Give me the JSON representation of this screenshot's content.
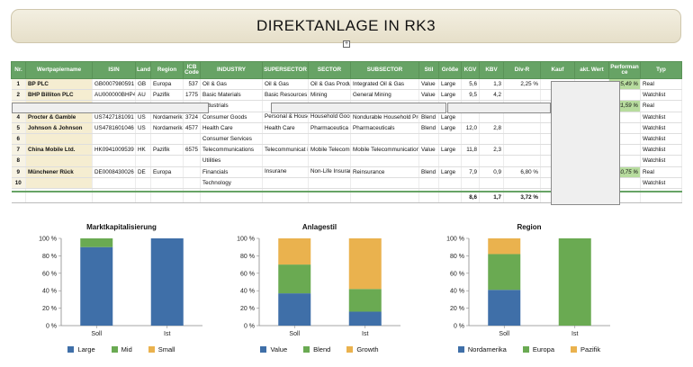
{
  "title": "DIREKTANLAGE IN RK3",
  "table": {
    "headers": [
      "Nr.",
      "Wertpapiername",
      "ISIN",
      "Land",
      "Region",
      "ICB Code",
      "INDUSTRY",
      "SUPERSECTOR",
      "SECTOR",
      "SUBSECTOR",
      "Stil",
      "Größe",
      "KGV",
      "KBV",
      "Div-R",
      "Kauf",
      "akt. Wert",
      "Performan ce",
      "Typ"
    ],
    "rows": [
      {
        "nr": "1",
        "name": "BP PLC",
        "isin": "GB0007980591",
        "land": "GB",
        "region": "Europa",
        "icb": "537",
        "industry": "Oil & Gas",
        "supersector": "Oil & Gas",
        "sector": "Oil & Gas Producers",
        "subsector": "Integrated Oil & Gas",
        "stil": "Value",
        "groesse": "Large",
        "kgv": "5,6",
        "kbv": "1,3",
        "divr": "2,25 %",
        "perf": "25,49 %",
        "typ": "Real"
      },
      {
        "nr": "2",
        "name": "BHP Billiton PLC",
        "isin": "AU000000BHP4",
        "land": "AU",
        "region": "Pazifik",
        "icb": "1775",
        "industry": "Basic Materials",
        "supersector": "Basic Resources",
        "sector": "Mining",
        "subsector": "General Mining",
        "stil": "Value",
        "groesse": "Large",
        "kgv": "9,5",
        "kbv": "4,2",
        "divr": "",
        "perf": "",
        "typ": "Watchlist"
      },
      {
        "nr": "",
        "name": "",
        "isin": "",
        "land": "",
        "region": "",
        "icb": "",
        "industry": "Industrials",
        "supersector": "",
        "sector": "",
        "subsector": "",
        "stil": "Growth",
        "groesse": "",
        "kgv": "",
        "kbv": "",
        "divr": "",
        "perf": "81,59 %",
        "typ": "Real"
      },
      {
        "nr": "4",
        "name": "Procter & Gamble",
        "isin": "US7427181091",
        "land": "US",
        "region": "Nordamerika",
        "icb": "3724",
        "industry": "Consumer Goods",
        "supersector": "Personal & Household Goods",
        "sector": "Household Goods & Home Construction",
        "subsector": "Nondurable Household Products",
        "stil": "Blend",
        "groesse": "Large",
        "kgv": "",
        "kbv": "",
        "divr": "",
        "perf": "",
        "typ": "Watchlist"
      },
      {
        "nr": "5",
        "name": "Johnson & Johnson",
        "isin": "US4781601046",
        "land": "US",
        "region": "Nordamerika",
        "icb": "4577",
        "industry": "Health Care",
        "supersector": "Health Care",
        "sector": "Pharmaceutica ls &",
        "subsector": "Pharmaceuticals",
        "stil": "Blend",
        "groesse": "Large",
        "kgv": "12,0",
        "kbv": "2,8",
        "divr": "",
        "perf": "",
        "typ": "Watchlist"
      },
      {
        "nr": "6",
        "name": "",
        "isin": "",
        "land": "",
        "region": "",
        "icb": "",
        "industry": "Consumer Services",
        "supersector": "",
        "sector": "",
        "subsector": "",
        "stil": "",
        "groesse": "",
        "kgv": "",
        "kbv": "",
        "divr": "",
        "perf": "",
        "typ": "Watchlist"
      },
      {
        "nr": "7",
        "name": "China Mobile Ltd.",
        "isin": "HK0941009539",
        "land": "HK",
        "region": "Pazifik",
        "icb": "6575",
        "industry": "Telecommunications",
        "supersector": "Telecommunicat ions",
        "sector": "Mobile Telecommunic",
        "subsector": "Mobile Telecommunications",
        "stil": "Value",
        "groesse": "Large",
        "kgv": "11,8",
        "kbv": "2,3",
        "divr": "",
        "perf": "",
        "typ": "Watchlist"
      },
      {
        "nr": "8",
        "name": "",
        "isin": "",
        "land": "",
        "region": "",
        "icb": "",
        "industry": "Utilities",
        "supersector": "",
        "sector": "",
        "subsector": "",
        "stil": "",
        "groesse": "",
        "kgv": "",
        "kbv": "",
        "divr": "",
        "perf": "",
        "typ": "Watchlist"
      },
      {
        "nr": "9",
        "name": "Münchener Rück",
        "isin": "DE0008430026",
        "land": "DE",
        "region": "Europa",
        "icb": "",
        "industry": "Financials",
        "supersector": "Insurane",
        "sector": "Non-Life Insurance",
        "subsector": "Reinsurance",
        "stil": "Blend",
        "groesse": "Large",
        "kgv": "7,9",
        "kbv": "0,9",
        "divr": "6,80 %",
        "perf": "10,75 %",
        "typ": "Real"
      },
      {
        "nr": "10",
        "name": "",
        "isin": "",
        "land": "",
        "region": "",
        "icb": "",
        "industry": "Technology",
        "supersector": "",
        "sector": "",
        "subsector": "",
        "stil": "",
        "groesse": "",
        "kgv": "",
        "kbv": "",
        "divr": "",
        "perf": "",
        "typ": "Watchlist"
      }
    ],
    "totals": {
      "kgv": "8,6",
      "kbv": "1,7",
      "divr": "3,72 %"
    }
  },
  "colors": {
    "blue": "#3f6fa8",
    "green": "#6aaa52",
    "orange": "#eab24e",
    "header_green": "#67a365"
  },
  "chart_data": [
    {
      "type": "bar",
      "stacked": true,
      "title": "Marktkapitalisierung",
      "categories": [
        "Soll",
        "Ist"
      ],
      "series": [
        {
          "name": "Large",
          "values": [
            90,
            100
          ],
          "color": "#3f6fa8"
        },
        {
          "name": "Mid",
          "values": [
            10,
            0
          ],
          "color": "#6aaa52"
        },
        {
          "name": "Small",
          "values": [
            0,
            0
          ],
          "color": "#eab24e"
        }
      ],
      "yticks": [
        "0 %",
        "20 %",
        "40 %",
        "60 %",
        "80 %",
        "100 %"
      ],
      "ylim": [
        0,
        100
      ]
    },
    {
      "type": "bar",
      "stacked": true,
      "title": "Anlagestil",
      "categories": [
        "Soll",
        "Ist"
      ],
      "series": [
        {
          "name": "Value",
          "values": [
            37,
            16
          ],
          "color": "#3f6fa8"
        },
        {
          "name": "Blend",
          "values": [
            33,
            26
          ],
          "color": "#6aaa52"
        },
        {
          "name": "Growth",
          "values": [
            30,
            58
          ],
          "color": "#eab24e"
        }
      ],
      "yticks": [
        "0 %",
        "20 %",
        "40 %",
        "60 %",
        "80 %",
        "100 %"
      ],
      "ylim": [
        0,
        100
      ]
    },
    {
      "type": "bar",
      "stacked": true,
      "title": "Region",
      "categories": [
        "Soll",
        "Ist"
      ],
      "series": [
        {
          "name": "Nordamerika",
          "values": [
            41,
            0
          ],
          "color": "#3f6fa8"
        },
        {
          "name": "Europa",
          "values": [
            41,
            100
          ],
          "color": "#6aaa52"
        },
        {
          "name": "Pazifik",
          "values": [
            18,
            0
          ],
          "color": "#eab24e"
        }
      ],
      "yticks": [
        "0 %",
        "20 %",
        "40 %",
        "60 %",
        "80 %",
        "100 %"
      ],
      "ylim": [
        0,
        100
      ]
    }
  ]
}
